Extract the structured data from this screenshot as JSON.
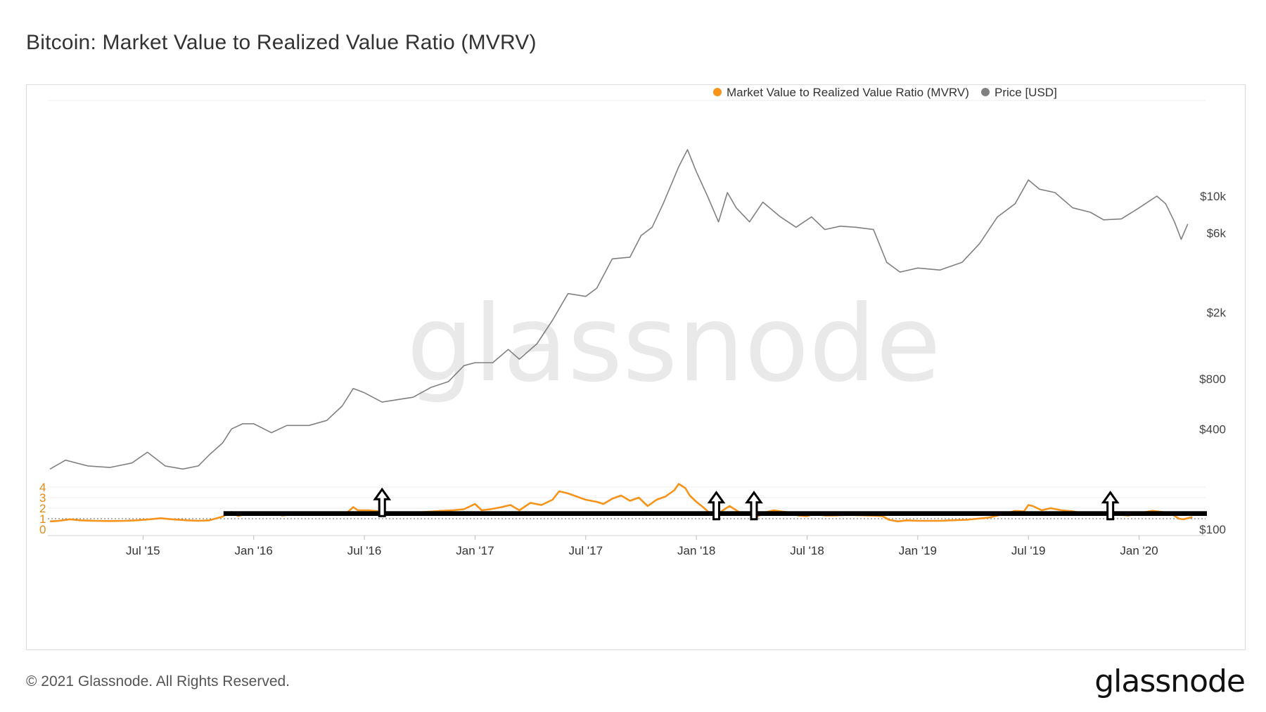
{
  "title": "Bitcoin: Market Value to Realized Value Ratio (MVRV)",
  "footer": {
    "copyright": "© 2021 Glassnode. All Rights Reserved.",
    "logo": "glassnode"
  },
  "watermark": "glassnode",
  "colors": {
    "mvrv": "#f7931a",
    "price": "#808080",
    "grid": "#ececec",
    "annotation": "#000000",
    "left_axis": "#e88a14"
  },
  "chart_data": {
    "type": "line",
    "title": "Bitcoin: Market Value to Realized Value Ratio (MVRV)",
    "x_range": [
      "2015-02",
      "2020-05"
    ],
    "x_ticks": [
      {
        "label": "Jul '15",
        "t": 2015.5
      },
      {
        "label": "Jan '16",
        "t": 2016.0
      },
      {
        "label": "Jul '16",
        "t": 2016.5
      },
      {
        "label": "Jan '17",
        "t": 2017.0
      },
      {
        "label": "Jul '17",
        "t": 2017.5
      },
      {
        "label": "Jan '18",
        "t": 2018.0
      },
      {
        "label": "Jul '18",
        "t": 2018.5
      },
      {
        "label": "Jan '19",
        "t": 2019.0
      },
      {
        "label": "Jul '19",
        "t": 2019.5
      },
      {
        "label": "Jan '20",
        "t": 2020.0
      }
    ],
    "left_axis": {
      "range": [
        0,
        4.9
      ],
      "ticks": [
        {
          "label": "0",
          "v": 0
        },
        {
          "label": "1",
          "v": 1
        },
        {
          "label": "2",
          "v": 2
        },
        {
          "label": "3",
          "v": 3
        },
        {
          "label": "4",
          "v": 4
        }
      ]
    },
    "right_axis": {
      "scale": "log",
      "range": [
        100,
        30000
      ],
      "ticks": [
        {
          "label": "$100",
          "v": 100
        },
        {
          "label": "$400",
          "v": 400
        },
        {
          "label": "$800",
          "v": 800
        },
        {
          "label": "$2k",
          "v": 2000
        },
        {
          "label": "$6k",
          "v": 6000
        },
        {
          "label": "$10k",
          "v": 10000
        }
      ]
    },
    "reference_line": {
      "axis": "left",
      "value": 1,
      "style": "dotted"
    },
    "legend": [
      {
        "name": "Market Value to Realized Value Ratio (MVRV)",
        "color": "#f7931a"
      },
      {
        "name": "Price [USD]",
        "color": "#808080"
      }
    ],
    "legend_position": "top-right",
    "series": [
      {
        "name": "Market Value to Realized Value Ratio (MVRV)",
        "axis": "left",
        "color": "#f7931a",
        "points": [
          [
            2015.08,
            0.75
          ],
          [
            2015.12,
            0.8
          ],
          [
            2015.17,
            0.95
          ],
          [
            2015.22,
            0.85
          ],
          [
            2015.28,
            0.8
          ],
          [
            2015.35,
            0.78
          ],
          [
            2015.42,
            0.8
          ],
          [
            2015.47,
            0.85
          ],
          [
            2015.53,
            0.95
          ],
          [
            2015.58,
            1.05
          ],
          [
            2015.63,
            0.95
          ],
          [
            2015.7,
            0.85
          ],
          [
            2015.75,
            0.8
          ],
          [
            2015.8,
            0.85
          ],
          [
            2015.86,
            1.2
          ],
          [
            2015.9,
            1.65
          ],
          [
            2015.93,
            1.25
          ],
          [
            2015.97,
            1.5
          ],
          [
            2016.0,
            1.5
          ],
          [
            2016.04,
            1.35
          ],
          [
            2016.08,
            1.55
          ],
          [
            2016.13,
            1.3
          ],
          [
            2016.18,
            1.45
          ],
          [
            2016.25,
            1.35
          ],
          [
            2016.3,
            1.45
          ],
          [
            2016.38,
            1.5
          ],
          [
            2016.42,
            1.55
          ],
          [
            2016.45,
            2.1
          ],
          [
            2016.47,
            1.8
          ],
          [
            2016.52,
            1.8
          ],
          [
            2016.57,
            1.7
          ],
          [
            2016.6,
            1.5
          ],
          [
            2016.65,
            1.55
          ],
          [
            2016.7,
            1.55
          ],
          [
            2016.78,
            1.65
          ],
          [
            2016.85,
            1.75
          ],
          [
            2016.9,
            1.8
          ],
          [
            2016.95,
            1.9
          ],
          [
            2017.0,
            2.4
          ],
          [
            2017.03,
            1.8
          ],
          [
            2017.07,
            1.9
          ],
          [
            2017.12,
            2.1
          ],
          [
            2017.16,
            2.3
          ],
          [
            2017.2,
            1.8
          ],
          [
            2017.25,
            2.5
          ],
          [
            2017.3,
            2.3
          ],
          [
            2017.35,
            2.8
          ],
          [
            2017.38,
            3.6
          ],
          [
            2017.42,
            3.4
          ],
          [
            2017.46,
            3.1
          ],
          [
            2017.5,
            2.8
          ],
          [
            2017.55,
            2.6
          ],
          [
            2017.58,
            2.4
          ],
          [
            2017.62,
            2.9
          ],
          [
            2017.66,
            3.2
          ],
          [
            2017.7,
            2.7
          ],
          [
            2017.74,
            3.0
          ],
          [
            2017.78,
            2.2
          ],
          [
            2017.82,
            2.8
          ],
          [
            2017.86,
            3.1
          ],
          [
            2017.9,
            3.7
          ],
          [
            2017.92,
            4.3
          ],
          [
            2017.95,
            3.9
          ],
          [
            2017.97,
            3.2
          ],
          [
            2018.0,
            2.6
          ],
          [
            2018.03,
            2.1
          ],
          [
            2018.06,
            1.55
          ],
          [
            2018.09,
            1.35
          ],
          [
            2018.12,
            1.8
          ],
          [
            2018.15,
            2.2
          ],
          [
            2018.18,
            1.8
          ],
          [
            2018.2,
            1.55
          ],
          [
            2018.24,
            1.4
          ],
          [
            2018.28,
            1.25
          ],
          [
            2018.31,
            1.6
          ],
          [
            2018.35,
            1.8
          ],
          [
            2018.38,
            1.7
          ],
          [
            2018.42,
            1.6
          ],
          [
            2018.46,
            1.3
          ],
          [
            2018.5,
            1.25
          ],
          [
            2018.54,
            1.5
          ],
          [
            2018.58,
            1.3
          ],
          [
            2018.62,
            1.3
          ],
          [
            2018.66,
            1.35
          ],
          [
            2018.72,
            1.35
          ],
          [
            2018.78,
            1.3
          ],
          [
            2018.84,
            1.25
          ],
          [
            2018.87,
            0.9
          ],
          [
            2018.91,
            0.75
          ],
          [
            2018.95,
            0.85
          ],
          [
            2019.0,
            0.8
          ],
          [
            2019.05,
            0.8
          ],
          [
            2019.1,
            0.8
          ],
          [
            2019.15,
            0.85
          ],
          [
            2019.22,
            0.9
          ],
          [
            2019.27,
            1.0
          ],
          [
            2019.32,
            1.1
          ],
          [
            2019.36,
            1.3
          ],
          [
            2019.4,
            1.5
          ],
          [
            2019.44,
            1.75
          ],
          [
            2019.48,
            1.7
          ],
          [
            2019.5,
            2.3
          ],
          [
            2019.52,
            2.2
          ],
          [
            2019.56,
            1.8
          ],
          [
            2019.6,
            2.0
          ],
          [
            2019.65,
            1.8
          ],
          [
            2019.7,
            1.7
          ],
          [
            2019.75,
            1.5
          ],
          [
            2019.78,
            1.45
          ],
          [
            2019.82,
            1.6
          ],
          [
            2019.86,
            1.3
          ],
          [
            2019.9,
            1.4
          ],
          [
            2019.95,
            1.3
          ],
          [
            2019.99,
            1.45
          ],
          [
            2020.02,
            1.6
          ],
          [
            2020.06,
            1.75
          ],
          [
            2020.1,
            1.65
          ],
          [
            2020.14,
            1.55
          ],
          [
            2020.18,
            1.0
          ],
          [
            2020.2,
            0.95
          ],
          [
            2020.24,
            1.15
          ]
        ]
      },
      {
        "name": "Price [USD]",
        "axis": "right",
        "color": "#808080",
        "points": [
          [
            2015.08,
            230
          ],
          [
            2015.15,
            260
          ],
          [
            2015.25,
            240
          ],
          [
            2015.35,
            235
          ],
          [
            2015.45,
            250
          ],
          [
            2015.52,
            290
          ],
          [
            2015.6,
            240
          ],
          [
            2015.68,
            230
          ],
          [
            2015.75,
            240
          ],
          [
            2015.8,
            280
          ],
          [
            2015.86,
            330
          ],
          [
            2015.9,
            400
          ],
          [
            2015.95,
            430
          ],
          [
            2016.0,
            430
          ],
          [
            2016.08,
            380
          ],
          [
            2016.15,
            420
          ],
          [
            2016.25,
            420
          ],
          [
            2016.33,
            450
          ],
          [
            2016.4,
            550
          ],
          [
            2016.45,
            700
          ],
          [
            2016.5,
            660
          ],
          [
            2016.58,
            580
          ],
          [
            2016.65,
            600
          ],
          [
            2016.72,
            620
          ],
          [
            2016.8,
            710
          ],
          [
            2016.88,
            770
          ],
          [
            2016.95,
            960
          ],
          [
            2017.0,
            1000
          ],
          [
            2017.08,
            1000
          ],
          [
            2017.15,
            1200
          ],
          [
            2017.2,
            1050
          ],
          [
            2017.28,
            1300
          ],
          [
            2017.35,
            1800
          ],
          [
            2017.42,
            2600
          ],
          [
            2017.5,
            2500
          ],
          [
            2017.55,
            2800
          ],
          [
            2017.62,
            4200
          ],
          [
            2017.7,
            4300
          ],
          [
            2017.75,
            5800
          ],
          [
            2017.8,
            6500
          ],
          [
            2017.85,
            9000
          ],
          [
            2017.92,
            15000
          ],
          [
            2017.96,
            19000
          ],
          [
            2018.0,
            14000
          ],
          [
            2018.05,
            10000
          ],
          [
            2018.1,
            7000
          ],
          [
            2018.14,
            10500
          ],
          [
            2018.18,
            8500
          ],
          [
            2018.24,
            7000
          ],
          [
            2018.3,
            9200
          ],
          [
            2018.38,
            7500
          ],
          [
            2018.45,
            6500
          ],
          [
            2018.52,
            7500
          ],
          [
            2018.58,
            6300
          ],
          [
            2018.65,
            6600
          ],
          [
            2018.72,
            6500
          ],
          [
            2018.8,
            6300
          ],
          [
            2018.86,
            4000
          ],
          [
            2018.92,
            3500
          ],
          [
            2019.0,
            3700
          ],
          [
            2019.1,
            3600
          ],
          [
            2019.2,
            4000
          ],
          [
            2019.28,
            5200
          ],
          [
            2019.36,
            7500
          ],
          [
            2019.44,
            9000
          ],
          [
            2019.5,
            12500
          ],
          [
            2019.55,
            11000
          ],
          [
            2019.62,
            10500
          ],
          [
            2019.7,
            8500
          ],
          [
            2019.78,
            8000
          ],
          [
            2019.84,
            7200
          ],
          [
            2019.92,
            7300
          ],
          [
            2020.0,
            8500
          ],
          [
            2020.08,
            10000
          ],
          [
            2020.12,
            9000
          ],
          [
            2020.16,
            7000
          ],
          [
            2020.19,
            5500
          ],
          [
            2020.22,
            6800
          ]
        ]
      }
    ],
    "annotations": {
      "box": {
        "label": "",
        "v_low": 1.4,
        "v_high": 1.58,
        "t_start": 2015.87,
        "t_end": 2020.3
      },
      "arrows": [
        {
          "t": 2016.58,
          "v": 1.25
        },
        {
          "t": 2018.09,
          "v": 0.95
        },
        {
          "t": 2018.26,
          "v": 0.95
        },
        {
          "t": 2019.87,
          "v": 0.95
        }
      ]
    }
  }
}
